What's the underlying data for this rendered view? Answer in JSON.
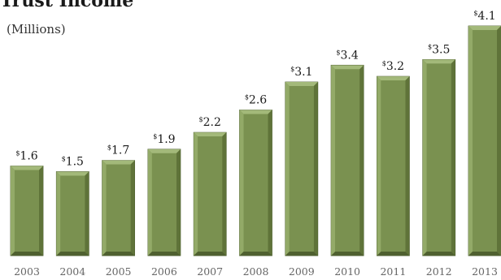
{
  "chart_data": {
    "type": "bar",
    "title": "Trust Income",
    "subtitle": "(Millions)",
    "value_prefix": "$",
    "categories": [
      "2003",
      "2004",
      "2005",
      "2006",
      "2007",
      "2008",
      "2009",
      "2010",
      "2011",
      "2012",
      "2013"
    ],
    "values": [
      1.6,
      1.5,
      1.7,
      1.9,
      2.2,
      2.6,
      3.1,
      3.4,
      3.2,
      3.5,
      4.1
    ],
    "value_labels": [
      "1.6",
      "1.5",
      "1.7",
      "1.9",
      "2.2",
      "2.6",
      "3.1",
      "3.4",
      "3.2",
      "3.5",
      "4.1"
    ],
    "ylim": [
      0,
      4.1
    ],
    "grid": false,
    "legend": "none",
    "colors": {
      "bar_face": "#7a9150",
      "bar_top": "#a3b97a",
      "bar_left": "#93aa68",
      "bar_right": "#5f7339",
      "bar_bottom": "#4f6030",
      "bar_outline": "#4a5a2e"
    }
  }
}
